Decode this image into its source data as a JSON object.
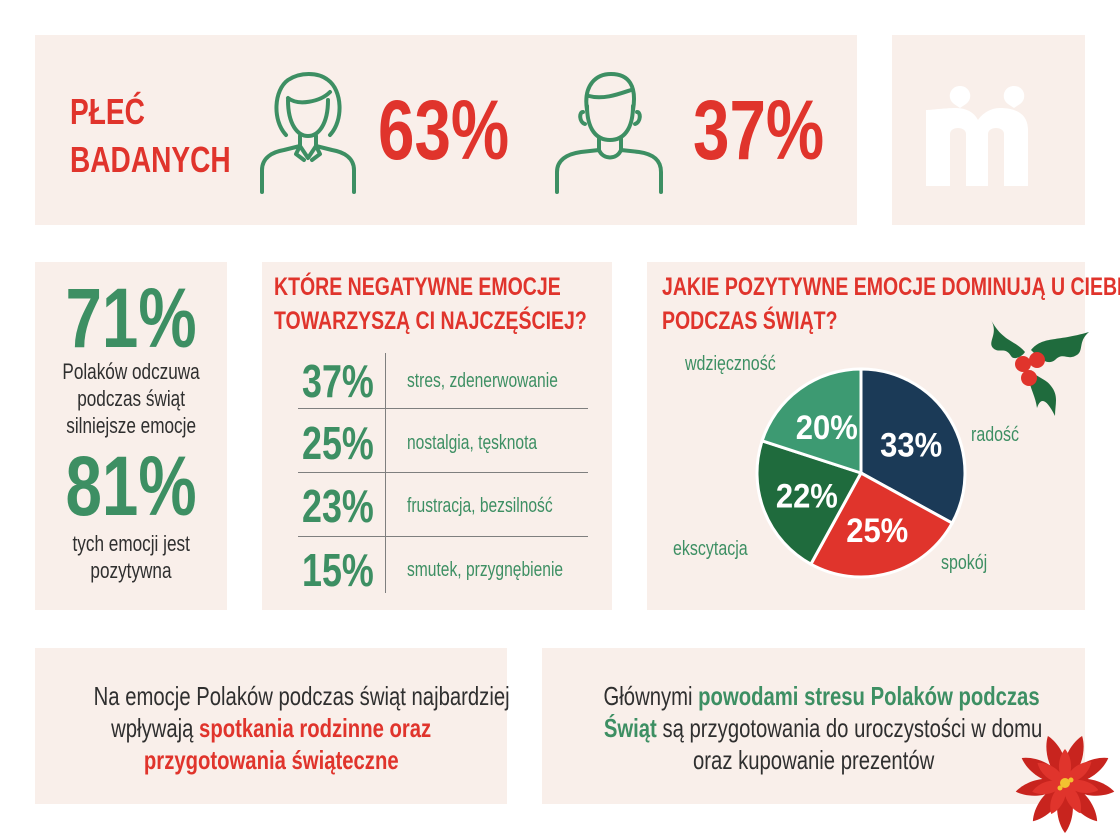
{
  "gender": {
    "title_line1": "PŁEĆ",
    "title_line2": "BADANYCH",
    "female_pct": "63%",
    "male_pct": "37%"
  },
  "stats": {
    "stat1_pct": "71%",
    "stat1_line1": "Polaków odczuwa",
    "stat1_line2": "podczas świąt",
    "stat1_line3": "silniejsze emocje",
    "stat2_pct": "81%",
    "stat2_line1": "tych emocji jest",
    "stat2_line2": "pozytywna"
  },
  "negative": {
    "title_line1": "KTÓRE NEGATYWNE EMOCJE",
    "title_line2": "TOWARZYSZĄ CI NAJCZĘŚCIEJ?",
    "rows": [
      {
        "pct": "37%",
        "label": "stres, zdenerwowanie"
      },
      {
        "pct": "25%",
        "label": "nostalgia, tęsknota"
      },
      {
        "pct": "23%",
        "label": "frustracja, bezsilność"
      },
      {
        "pct": "15%",
        "label": "smutek, przygnębienie"
      }
    ]
  },
  "positive": {
    "title_line1": "JAKIE POZYTYWNE EMOCJE DOMINUJĄ U CIEBIE",
    "title_line2": "PODCZAS ŚWIĄT?"
  },
  "chart_data": {
    "type": "pie",
    "categories": [
      "radość",
      "spokój",
      "ekscytacja",
      "wdzięczność"
    ],
    "values": [
      33,
      25,
      22,
      20
    ],
    "value_labels": [
      "33%",
      "25%",
      "22%",
      "20%"
    ],
    "colors": [
      "#1b3a57",
      "#e0342c",
      "#1f6b3d",
      "#3d9a72"
    ],
    "start": "12 o'clock, clockwise"
  },
  "bottom": {
    "left_line1": "Na emocje Polaków podczas świąt najbardziej",
    "left_line2_a": "wpływają ",
    "left_line2_b": "spotkania rodzinne oraz",
    "left_line3": "przygotowania świąteczne",
    "right_line1_a": "Głównymi ",
    "right_line1_b": "powodami stresu Polaków podczas",
    "right_line2_a": "Świąt",
    "right_line2_b": " są przygotowania do uroczystości w domu",
    "right_line3": "oraz kupowanie prezentów"
  },
  "colors": {
    "accent_red": "#e0342c",
    "accent_green": "#3d8f63",
    "panel_bg": "#f9efea",
    "navy": "#1b3a57"
  },
  "icons": [
    "female-person-icon",
    "male-person-icon",
    "brand-logo",
    "holly-icon",
    "poinsettia-icon"
  ]
}
